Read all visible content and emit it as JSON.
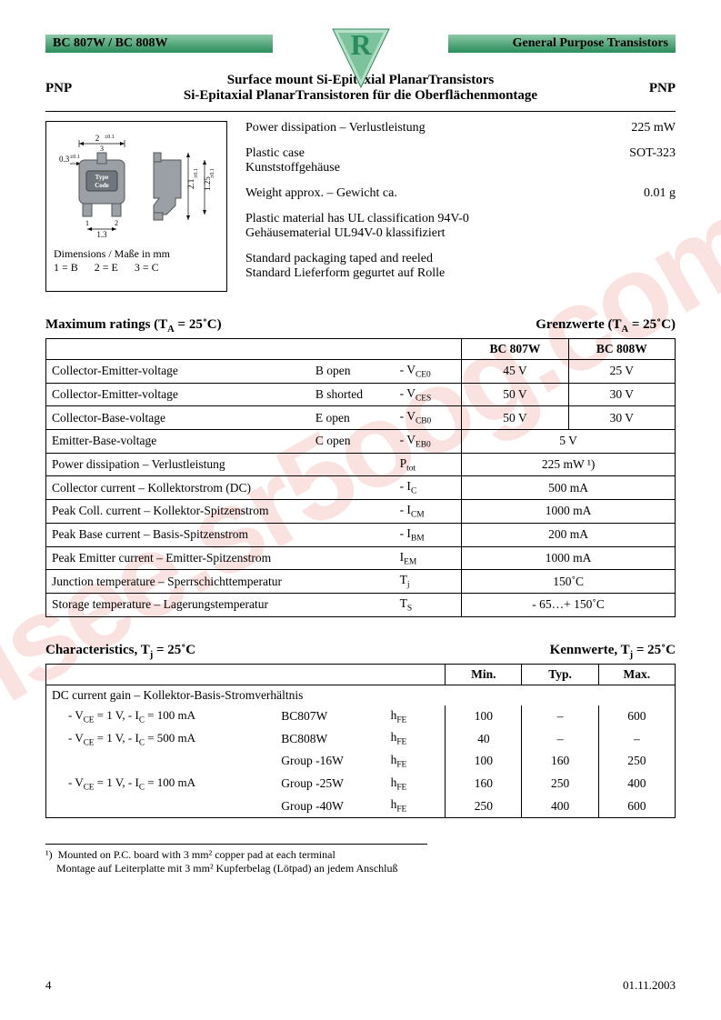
{
  "header": {
    "left": "BC 807W / BC 808W",
    "right": "General Purpose Transistors",
    "logo_letter": "R",
    "logo_fill": "#2a8c5a",
    "logo_triangle_fill": "#7cc29c"
  },
  "title": {
    "side": "PNP",
    "line1": "Surface mount Si-Epitaxial PlanarTransistors",
    "line2": "Si-Epitaxial PlanarTransistoren für die Oberflächenmontage"
  },
  "package": {
    "dims_label": "Dimensions / Maße in mm",
    "pins": "1 = B      2 = E      3 = C",
    "dim_w": "2",
    "dim_w_tol": "±0.1",
    "dim_pitch": "1.3",
    "dim_lead": "0.3",
    "dim_lead_tol": "±0.1",
    "dim_h": "2.1",
    "dim_h_tol": "±0.1",
    "dim_h2": "1.25",
    "dim_h2_tol": "±0.1",
    "type_code": "Type\nCode"
  },
  "info": [
    {
      "label_en": "Power dissipation – Verlustleistung",
      "value": "225 mW"
    },
    {
      "label_en": "Plastic case",
      "label_de": "Kunststoffgehäuse",
      "value": "SOT-323"
    },
    {
      "label_en": "Weight approx. – Gewicht ca.",
      "value": "0.01 g"
    }
  ],
  "info_notes": [
    "Plastic material has UL classification 94V-0\nGehäusematerial UL94V-0 klassifiziert",
    "Standard packaging taped and reeled\nStandard Lieferform gegurtet auf Rolle"
  ],
  "max_ratings": {
    "heading_left": "Maximum ratings (T",
    "heading_left_sub": "A",
    "heading_left_rest": " = 25˚C)",
    "heading_right": "Grenzwerte (T",
    "heading_right_sub": "A",
    "heading_right_rest": " = 25˚C)",
    "col1": "BC 807W",
    "col2": "BC 808W",
    "rows": [
      {
        "param": "Collector-Emitter-voltage",
        "cond": "B open",
        "sym": "- V",
        "sub": "CE0",
        "v1": "45 V",
        "v2": "25 V"
      },
      {
        "param": "Collector-Emitter-voltage",
        "cond": "B shorted",
        "sym": "- V",
        "sub": "CES",
        "v1": "50 V",
        "v2": "30 V"
      },
      {
        "param": "Collector-Base-voltage",
        "cond": "E open",
        "sym": "- V",
        "sub": "CB0",
        "v1": "50 V",
        "v2": "30 V"
      },
      {
        "param": "Emitter-Base-voltage",
        "cond": "C open",
        "sym": "- V",
        "sub": "EB0",
        "vmerged": "5 V"
      },
      {
        "param": "Power dissipation – Verlustleistung",
        "cond": "",
        "sym": "P",
        "sub": "tot",
        "vmerged": "225 mW ¹)"
      },
      {
        "param": "Collector current – Kollektorstrom (DC)",
        "cond": "",
        "sym": "- I",
        "sub": "C",
        "vmerged": "500 mA"
      },
      {
        "param": "Peak Coll. current – Kollektor-Spitzenstrom",
        "cond": "",
        "sym": "- I",
        "sub": "CM",
        "vmerged": "1000 mA"
      },
      {
        "param": "Peak Base current – Basis-Spitzenstrom",
        "cond": "",
        "sym": "- I",
        "sub": "BM",
        "vmerged": "200 mA"
      },
      {
        "param": "Peak Emitter current – Emitter-Spitzenstrom",
        "cond": "",
        "sym": "I",
        "sub": "EM",
        "vmerged": "1000 mA"
      },
      {
        "param": "Junction temperature – Sperrschichttemperatur",
        "cond": "",
        "sym": "T",
        "sub": "j",
        "vmerged": "150˚C"
      },
      {
        "param": "Storage temperature – Lagerungstemperatur",
        "cond": "",
        "sym": "T",
        "sub": "S",
        "vmerged": "- 65…+ 150˚C"
      }
    ]
  },
  "characteristics": {
    "heading_left": "Characteristics, T",
    "heading_left_sub": "j",
    "heading_left_rest": " = 25˚C",
    "heading_right": "Kennwerte, T",
    "heading_right_sub": "j",
    "heading_right_rest": " = 25˚C",
    "col_min": "Min.",
    "col_typ": "Typ.",
    "col_max": "Max.",
    "group_label": "DC current gain – Kollektor-Basis-Stromverhältnis",
    "rows": [
      {
        "cond": "- V_CE = 1 V, - I_C = 100 mA",
        "grp": "BC807W",
        "sym": "h",
        "sub": "FE",
        "min": "100",
        "typ": "–",
        "max": "600"
      },
      {
        "cond": "- V_CE = 1 V, - I_C = 500 mA",
        "grp": "BC808W",
        "sym": "h",
        "sub": "FE",
        "min": "40",
        "typ": "–",
        "max": "–"
      },
      {
        "cond": "",
        "grp": "Group -16W",
        "sym": "h",
        "sub": "FE",
        "min": "100",
        "typ": "160",
        "max": "250"
      },
      {
        "cond": "- V_CE = 1 V, - I_C = 100 mA",
        "grp": "Group -25W",
        "sym": "h",
        "sub": "FE",
        "min": "160",
        "typ": "250",
        "max": "400"
      },
      {
        "cond": "",
        "grp": "Group -40W",
        "sym": "h",
        "sub": "FE",
        "min": "250",
        "typ": "400",
        "max": "600"
      }
    ]
  },
  "footnote": {
    "marker": "¹)",
    "en": "Mounted on P.C. board with 3 mm² copper pad at each terminal",
    "de": "Montage auf Leiterplatte mit 3 mm² Kupferbelag (Lötpad) an jedem Anschluß"
  },
  "footer": {
    "page": "4",
    "date": "01.11.2003"
  },
  "watermark": "isee.sr5oog.com",
  "colors": {
    "header_grad_top": "#8ec9a8",
    "header_grad_bottom": "#2a8c5a",
    "watermark_color": "rgba(220,60,50,0.15)",
    "text": "#000000",
    "bg": "#ffffff"
  }
}
